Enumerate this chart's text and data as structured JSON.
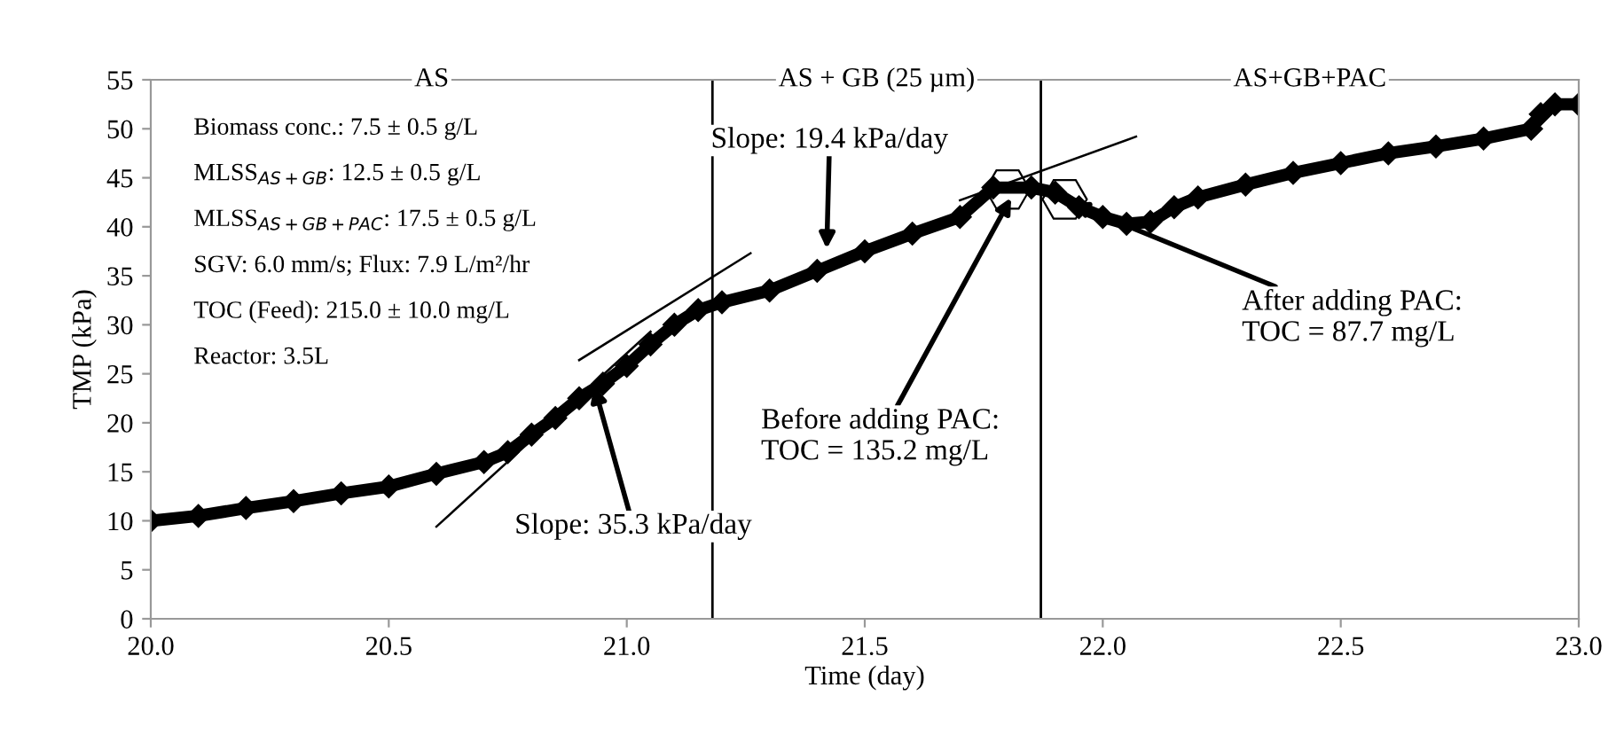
{
  "chart_data": {
    "type": "line",
    "xlabel": "Time (day)",
    "ylabel": "TMP (kPa)",
    "xlim": [
      20.0,
      23.0
    ],
    "xticks": [
      {
        "value": 20.0,
        "label": "20.0"
      },
      {
        "value": 20.5,
        "label": "20.5"
      },
      {
        "value": 21.0,
        "label": "21.0"
      },
      {
        "value": 21.5,
        "label": "21.5"
      },
      {
        "value": 22.0,
        "label": "22.0"
      },
      {
        "value": 22.5,
        "label": "22.5"
      },
      {
        "value": 23.0,
        "label": "23.0"
      }
    ],
    "ylim": [
      0,
      55
    ],
    "yticks": [
      0,
      5,
      10,
      15,
      20,
      25,
      30,
      35,
      40,
      45,
      50,
      55
    ],
    "grid": false,
    "series": [
      {
        "color": "#000000",
        "marker": "diamond",
        "x": [
          20.0,
          20.1,
          20.2,
          20.3,
          20.4,
          20.5,
          20.6,
          20.7,
          20.75,
          20.8,
          20.85,
          20.9,
          20.95,
          21.0,
          21.05,
          21.1,
          21.15,
          21.2,
          21.3,
          21.4,
          21.5,
          21.6,
          21.7,
          21.77,
          21.85,
          21.9,
          21.95,
          22.0,
          22.05,
          22.1,
          22.15,
          22.2,
          22.3,
          22.4,
          22.5,
          22.6,
          22.7,
          22.8,
          22.9,
          22.92,
          22.95,
          23.0
        ],
        "values": [
          10.0,
          10.5,
          11.3,
          12.0,
          12.8,
          13.5,
          14.8,
          16.0,
          17.0,
          18.8,
          20.5,
          22.5,
          24.0,
          25.8,
          28.0,
          30.0,
          31.5,
          32.3,
          33.5,
          35.5,
          37.5,
          39.3,
          41.0,
          44.0,
          44.0,
          43.5,
          42.0,
          41.0,
          40.3,
          40.5,
          42.0,
          43.0,
          44.3,
          45.5,
          46.5,
          47.5,
          48.2,
          49.0,
          50.0,
          51.5,
          52.5,
          52.5
        ]
      },
      {
        "type": "line",
        "color": "#000000",
        "marker": "none",
        "x": [
          20.6,
          21.05
        ],
        "values": [
          9.4,
          29.3
        ]
      },
      {
        "type": "line",
        "color": "#000000",
        "marker": "none",
        "x": [
          20.9,
          21.26
        ],
        "values": [
          26.4,
          37.3
        ]
      },
      {
        "type": "line",
        "color": "#000000",
        "marker": "none",
        "x": [
          21.7,
          22.07
        ],
        "values": [
          42.7,
          49.2
        ]
      }
    ],
    "ref_lines": [
      {
        "axis": "x",
        "value": 21.18
      },
      {
        "axis": "x",
        "value": 21.87
      }
    ],
    "annotations": [
      "AS",
      "AS + GB (25 µm)",
      "AS+GB+PAC",
      "Biomass conc.: 7.5 ± 0.5 g/L",
      "MLSS$_{AS+GB}$: 12.5 ± 0.5 g/L",
      "MLSS$_{AS+GB+PAC}$: 17.5 ± 0.5 g/L",
      "SGV: 6.0 mm/s; Flux: 7.9 L/m²/hr",
      "TOC (Feed): 215.0 ± 10.0 mg/L",
      "Reactor: 3.5L",
      {
        "text": "Slope: 35.3 kPa/day",
        "x": 20.93,
        "y": 24.0
      },
      {
        "text": "Slope: 19.4 kPa/day",
        "x": 21.42,
        "y": 37.5
      },
      {
        "text": "Before adding PAC:\nTOC = 135.2 mg/L",
        "x": 21.81,
        "y": 43.2
      },
      {
        "text": "After adding PAC:\nTOC = 87.7 mg/L",
        "x": 21.93,
        "y": 42.5
      }
    ]
  }
}
